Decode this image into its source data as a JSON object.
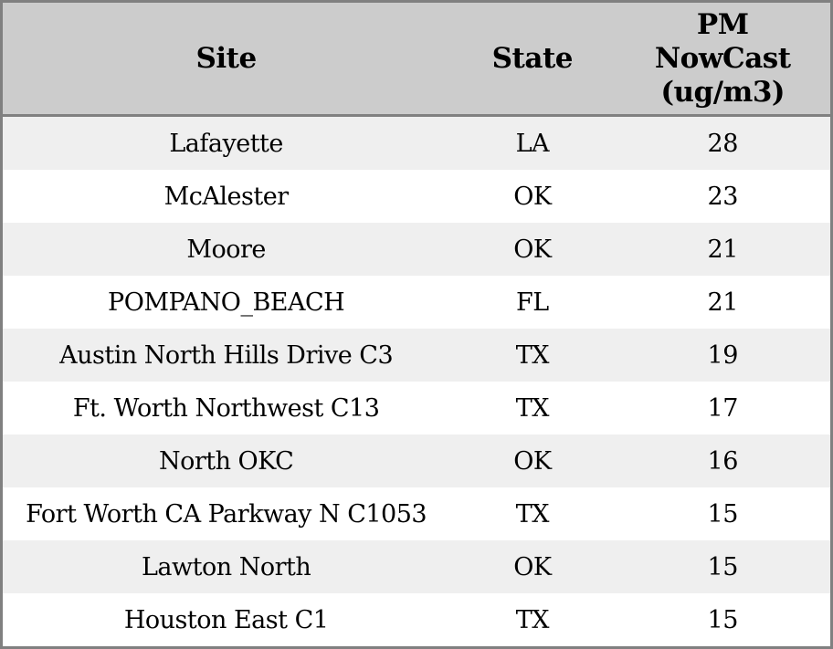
{
  "table": {
    "header": {
      "site": "Site",
      "state": "State",
      "pm": "PM\nNowCast\n(ug/m3)"
    },
    "rows": [
      {
        "site": "Lafayette",
        "state": "LA",
        "pm": "28"
      },
      {
        "site": "McAlester",
        "state": "OK",
        "pm": "23"
      },
      {
        "site": "Moore",
        "state": "OK",
        "pm": "21"
      },
      {
        "site": "POMPANO_BEACH",
        "state": "FL",
        "pm": "21"
      },
      {
        "site": "Austin North Hills Drive C3",
        "state": "TX",
        "pm": "19"
      },
      {
        "site": "Ft. Worth Northwest C13",
        "state": "TX",
        "pm": "17"
      },
      {
        "site": "North OKC",
        "state": "OK",
        "pm": "16"
      },
      {
        "site": "Fort Worth CA Parkway N C1053",
        "state": "TX",
        "pm": "15"
      },
      {
        "site": "Lawton North",
        "state": "OK",
        "pm": "15"
      },
      {
        "site": "Houston East C1",
        "state": "TX",
        "pm": "15"
      }
    ]
  },
  "colors": {
    "header_bg": "#cccccc",
    "stripe_bg": "#efefef",
    "row_bg": "#ffffff",
    "border": "#808080",
    "text": "#000000"
  },
  "chart_data": {
    "type": "table",
    "title": "",
    "columns": [
      "Site",
      "State",
      "PM NowCast (ug/m3)"
    ],
    "rows": [
      [
        "Lafayette",
        "LA",
        28
      ],
      [
        "McAlester",
        "OK",
        23
      ],
      [
        "Moore",
        "OK",
        21
      ],
      [
        "POMPANO_BEACH",
        "FL",
        21
      ],
      [
        "Austin North Hills Drive C3",
        "TX",
        19
      ],
      [
        "Ft. Worth Northwest C13",
        "TX",
        17
      ],
      [
        "North OKC",
        "OK",
        16
      ],
      [
        "Fort Worth CA Parkway N C1053",
        "TX",
        15
      ],
      [
        "Lawton North",
        "OK",
        15
      ],
      [
        "Houston East C1",
        "TX",
        15
      ]
    ],
    "layout": {
      "striped": true,
      "header_bg": "#cccccc",
      "stripe_bg": "#efefef"
    }
  }
}
